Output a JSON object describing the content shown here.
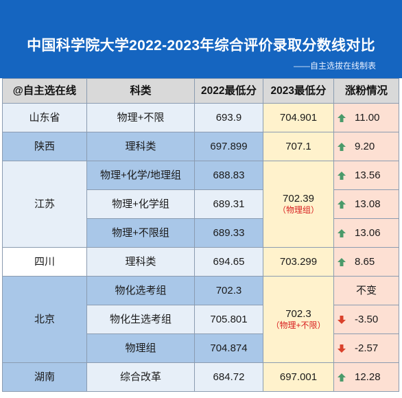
{
  "header": {
    "title": "中国科学院大学2022-2023年综合评价录取分数线对比",
    "subtitle": "——自主选拔在线制表"
  },
  "table": {
    "columns": [
      "@自主选在线",
      "科类",
      "2022最低分",
      "2023最低分",
      "涨粉情况"
    ],
    "rows": [
      {
        "province": "山东省",
        "subject": "物理+不限",
        "min2022": "693.9",
        "min2023": "704.901",
        "change": "11.00",
        "direction": "up"
      },
      {
        "province": "陕西",
        "subject": "理科类",
        "min2022": "697.899",
        "min2023": "707.1",
        "change": "9.20",
        "direction": "up"
      },
      {
        "province": "江苏",
        "subject": "物理+化学/地理组",
        "min2022": "688.83",
        "min2023": "702.39",
        "min2023_note": "（物理组）",
        "change": "13.56",
        "direction": "up"
      },
      {
        "subject": "物理+化学组",
        "min2022": "689.31",
        "change": "13.08",
        "direction": "up"
      },
      {
        "subject": "物理+不限组",
        "min2022": "689.33",
        "change": "13.06",
        "direction": "up"
      },
      {
        "province": "四川",
        "subject": "理科类",
        "min2022": "694.65",
        "min2023": "703.299",
        "change": "8.65",
        "direction": "up"
      },
      {
        "province": "北京",
        "subject": "物化选考组",
        "min2022": "702.3",
        "min2023": "702.3",
        "min2023_note": "（物理+不限）",
        "change": "不变",
        "direction": "none"
      },
      {
        "subject": "物化生选考组",
        "min2022": "705.801",
        "change": "-3.50",
        "direction": "down"
      },
      {
        "subject": "物理组",
        "min2022": "704.874",
        "change": "-2.57",
        "direction": "down"
      },
      {
        "province": "湖南",
        "subject": "综合改革",
        "min2022": "684.72",
        "min2023": "697.001",
        "change": "12.28",
        "direction": "up"
      }
    ]
  },
  "colors": {
    "up": "#4a9a6a",
    "down": "#d9412b",
    "banner": "#1565c0"
  }
}
